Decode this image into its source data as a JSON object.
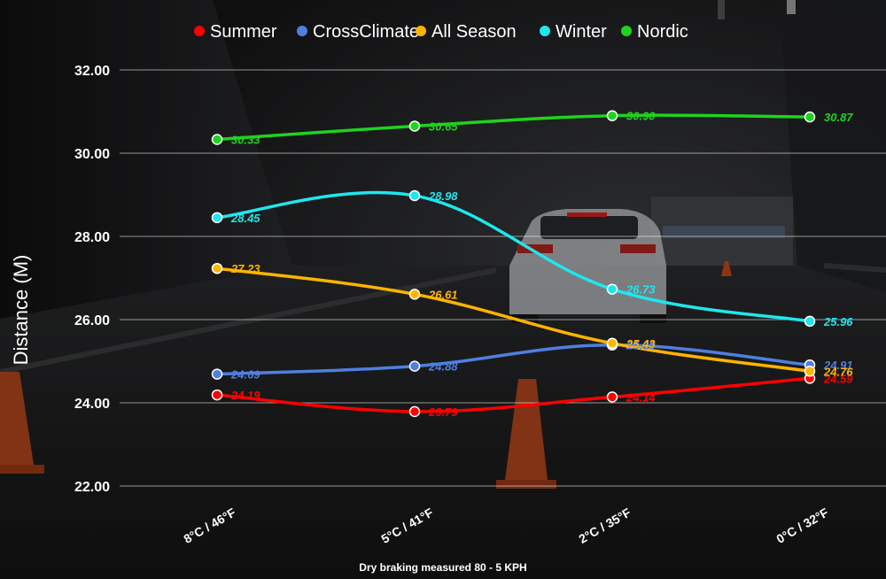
{
  "chart_data": {
    "type": "line",
    "categories": [
      "8°C / 46°F",
      "5°C / 41°F",
      "2°C / 35°F",
      "0°C / 32°F"
    ],
    "ylabel": "Distance (M)",
    "ylim": [
      22,
      33
    ],
    "yticks": [
      "22.00",
      "24.00",
      "26.00",
      "28.00",
      "30.00",
      "32.00"
    ],
    "grid": "horizontal",
    "legend_position": "top-center",
    "caption": "Dry braking measured 80 - 5 KPH",
    "series": [
      {
        "name": "Summer",
        "color": "#ff0000",
        "values": [
          24.19,
          23.79,
          24.14,
          24.59
        ],
        "labels": [
          "24.19",
          "23.79",
          "24.14",
          "24.59"
        ]
      },
      {
        "name": "CrossClimate",
        "color": "#4f7fdf",
        "values": [
          24.69,
          24.88,
          25.39,
          24.91
        ],
        "labels": [
          "24.69",
          "24.88",
          "25.39",
          "24.91"
        ]
      },
      {
        "name": "All Season",
        "color": "#ffb400",
        "values": [
          27.23,
          26.61,
          25.43,
          24.76
        ],
        "labels": [
          "27.23",
          "26.61",
          "25.43",
          "24.76"
        ]
      },
      {
        "name": "Winter",
        "color": "#1fe6ee",
        "values": [
          28.45,
          28.98,
          26.73,
          25.96
        ],
        "labels": [
          "28.45",
          "28.98",
          "26.73",
          "25.96"
        ]
      },
      {
        "name": "Nordic",
        "color": "#1ed41e",
        "values": [
          30.33,
          30.65,
          30.9,
          30.87
        ],
        "labels": [
          "30.33",
          "30.65",
          "30.90",
          "30.87"
        ]
      }
    ]
  }
}
